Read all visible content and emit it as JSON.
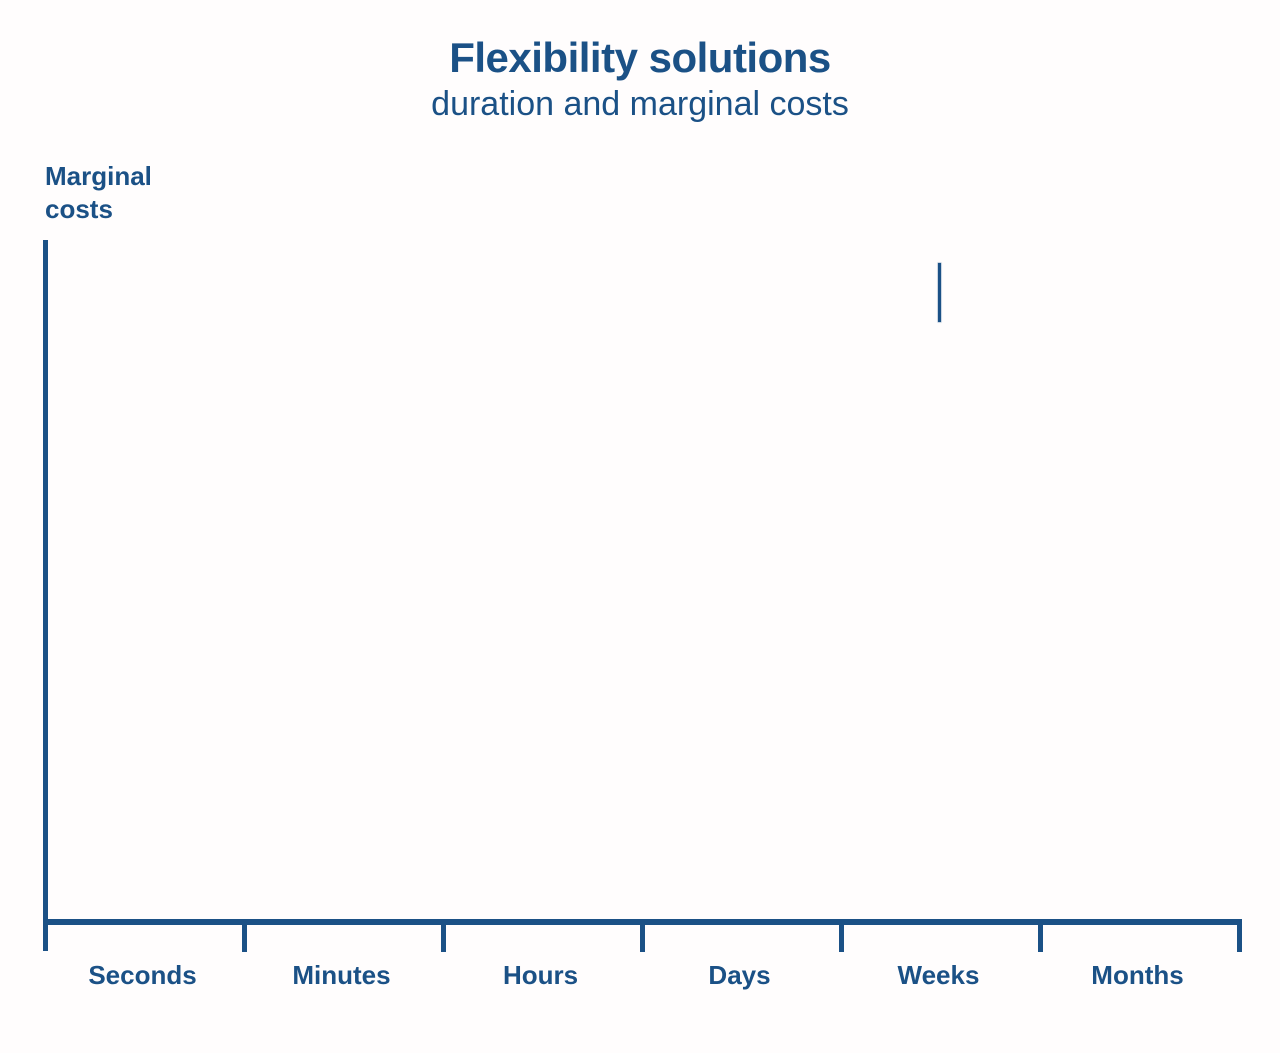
{
  "header": {
    "title": "Flexibility solutions",
    "subtitle": "duration and marginal costs"
  },
  "axes": {
    "y_label": "Marginal\ncosts"
  },
  "colors": {
    "accent_blue": "#1b5186",
    "background": "#fffdfd"
  },
  "chart_data": {
    "type": "line",
    "title": "Flexibility solutions",
    "subtitle": "duration and marginal costs",
    "xlabel": "",
    "ylabel": "Marginal costs",
    "categories": [
      "Seconds",
      "Minutes",
      "Hours",
      "Days",
      "Weeks",
      "Months"
    ],
    "series": [],
    "grid": false,
    "legend": false,
    "axis_style": "bare axes with downward category ticks, no numeric scale",
    "annotations": [
      {
        "shape": "short-vertical-stroke",
        "above_category": "Weeks",
        "x_fraction_of_axis": 0.75,
        "top_fraction_of_plot": 0.034,
        "bottom_fraction_of_plot": 0.121,
        "note": "lone short vertical line segment in upper right of otherwise empty plot area"
      }
    ]
  }
}
